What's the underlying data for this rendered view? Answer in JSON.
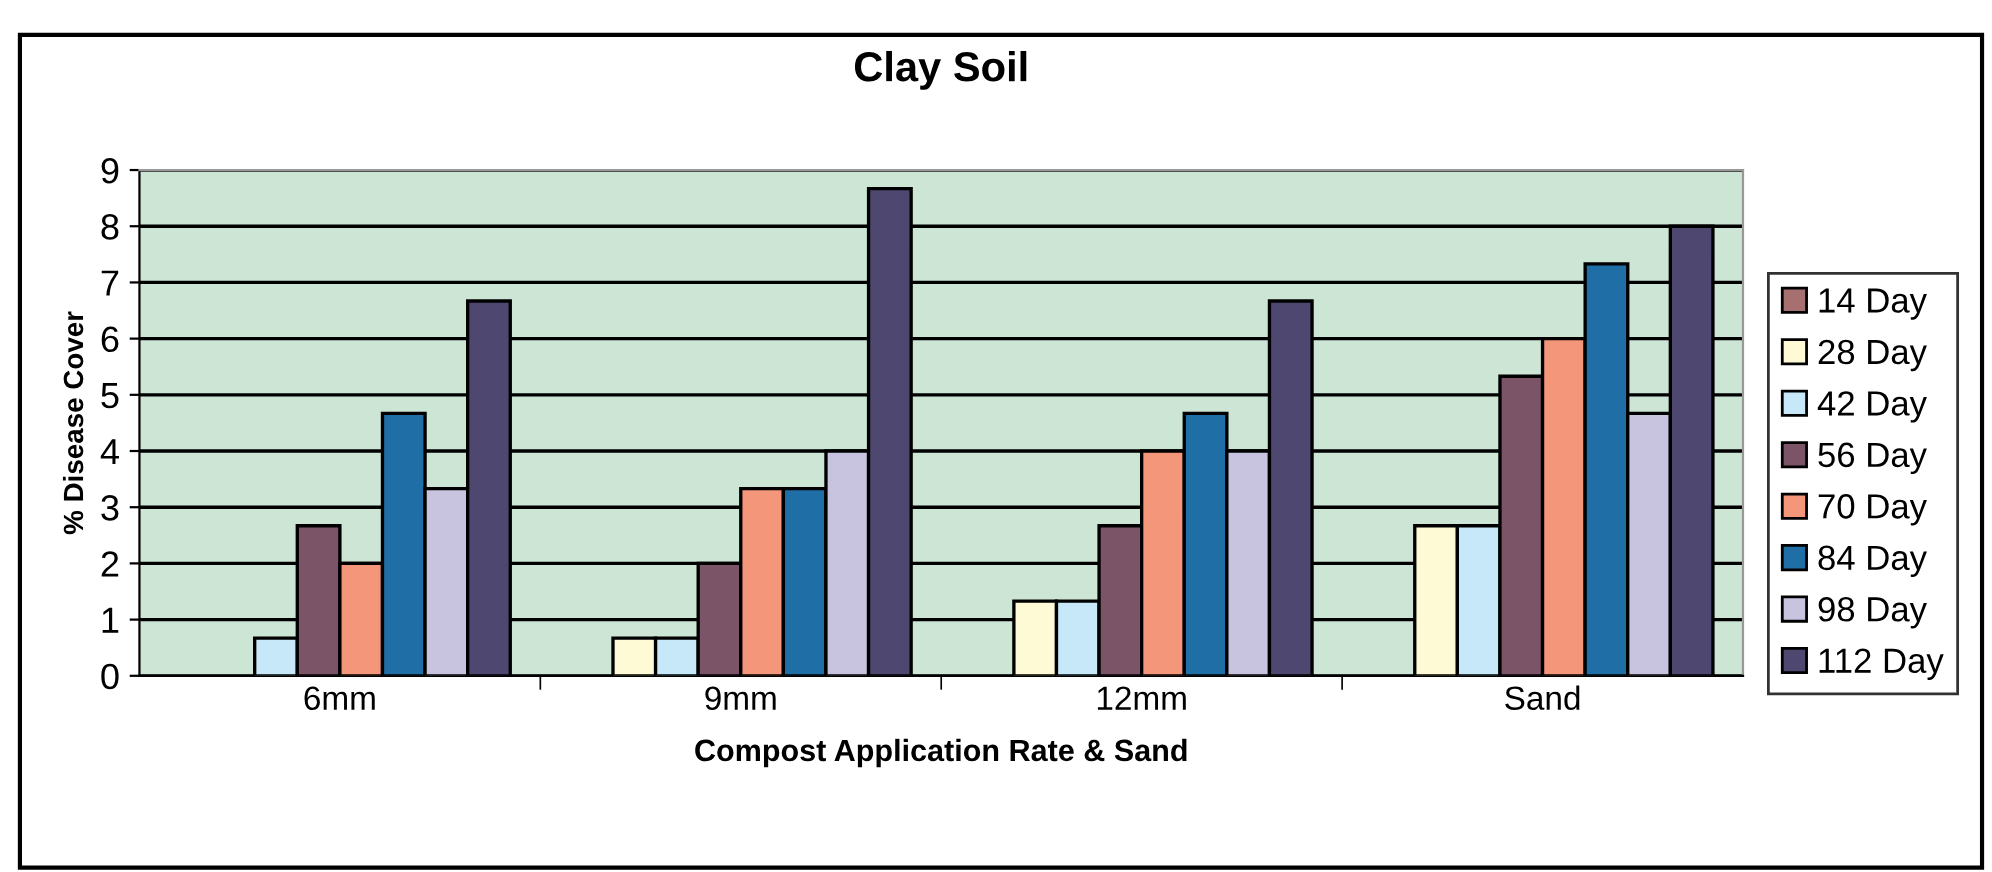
{
  "chart_data": {
    "type": "bar",
    "title": "Clay Soil",
    "xlabel": "Compost Application Rate & Sand",
    "ylabel": "% Disease Cover",
    "categories": [
      "6mm",
      "9mm",
      "12mm",
      "Sand"
    ],
    "series": [
      {
        "name": "14 Day",
        "color": "#a67070",
        "values": [
          0,
          0,
          0,
          0
        ]
      },
      {
        "name": "28 Day",
        "color": "#fffad6",
        "values": [
          0,
          0.67,
          1.33,
          2.67
        ]
      },
      {
        "name": "42 Day",
        "color": "#c6e8f8",
        "values": [
          0.67,
          0.67,
          1.33,
          2.67
        ]
      },
      {
        "name": "56 Day",
        "color": "#7b5468",
        "values": [
          2.67,
          2,
          2.67,
          5.33
        ]
      },
      {
        "name": "70 Day",
        "color": "#f4967a",
        "values": [
          2,
          3.33,
          4,
          6
        ]
      },
      {
        "name": "84 Day",
        "color": "#1f6ea6",
        "values": [
          4.67,
          3.33,
          4.67,
          7.33
        ]
      },
      {
        "name": "98 Day",
        "color": "#c8c4e0",
        "values": [
          3.33,
          4,
          4,
          4.67
        ]
      },
      {
        "name": "112 Day",
        "color": "#4e4870",
        "values": [
          6.67,
          8.67,
          6.67,
          8
        ]
      }
    ],
    "ylim": [
      0,
      9
    ],
    "yticks": [
      0,
      1,
      2,
      3,
      4,
      5,
      6,
      7,
      8,
      9
    ],
    "grid": "y",
    "legend": "right"
  }
}
